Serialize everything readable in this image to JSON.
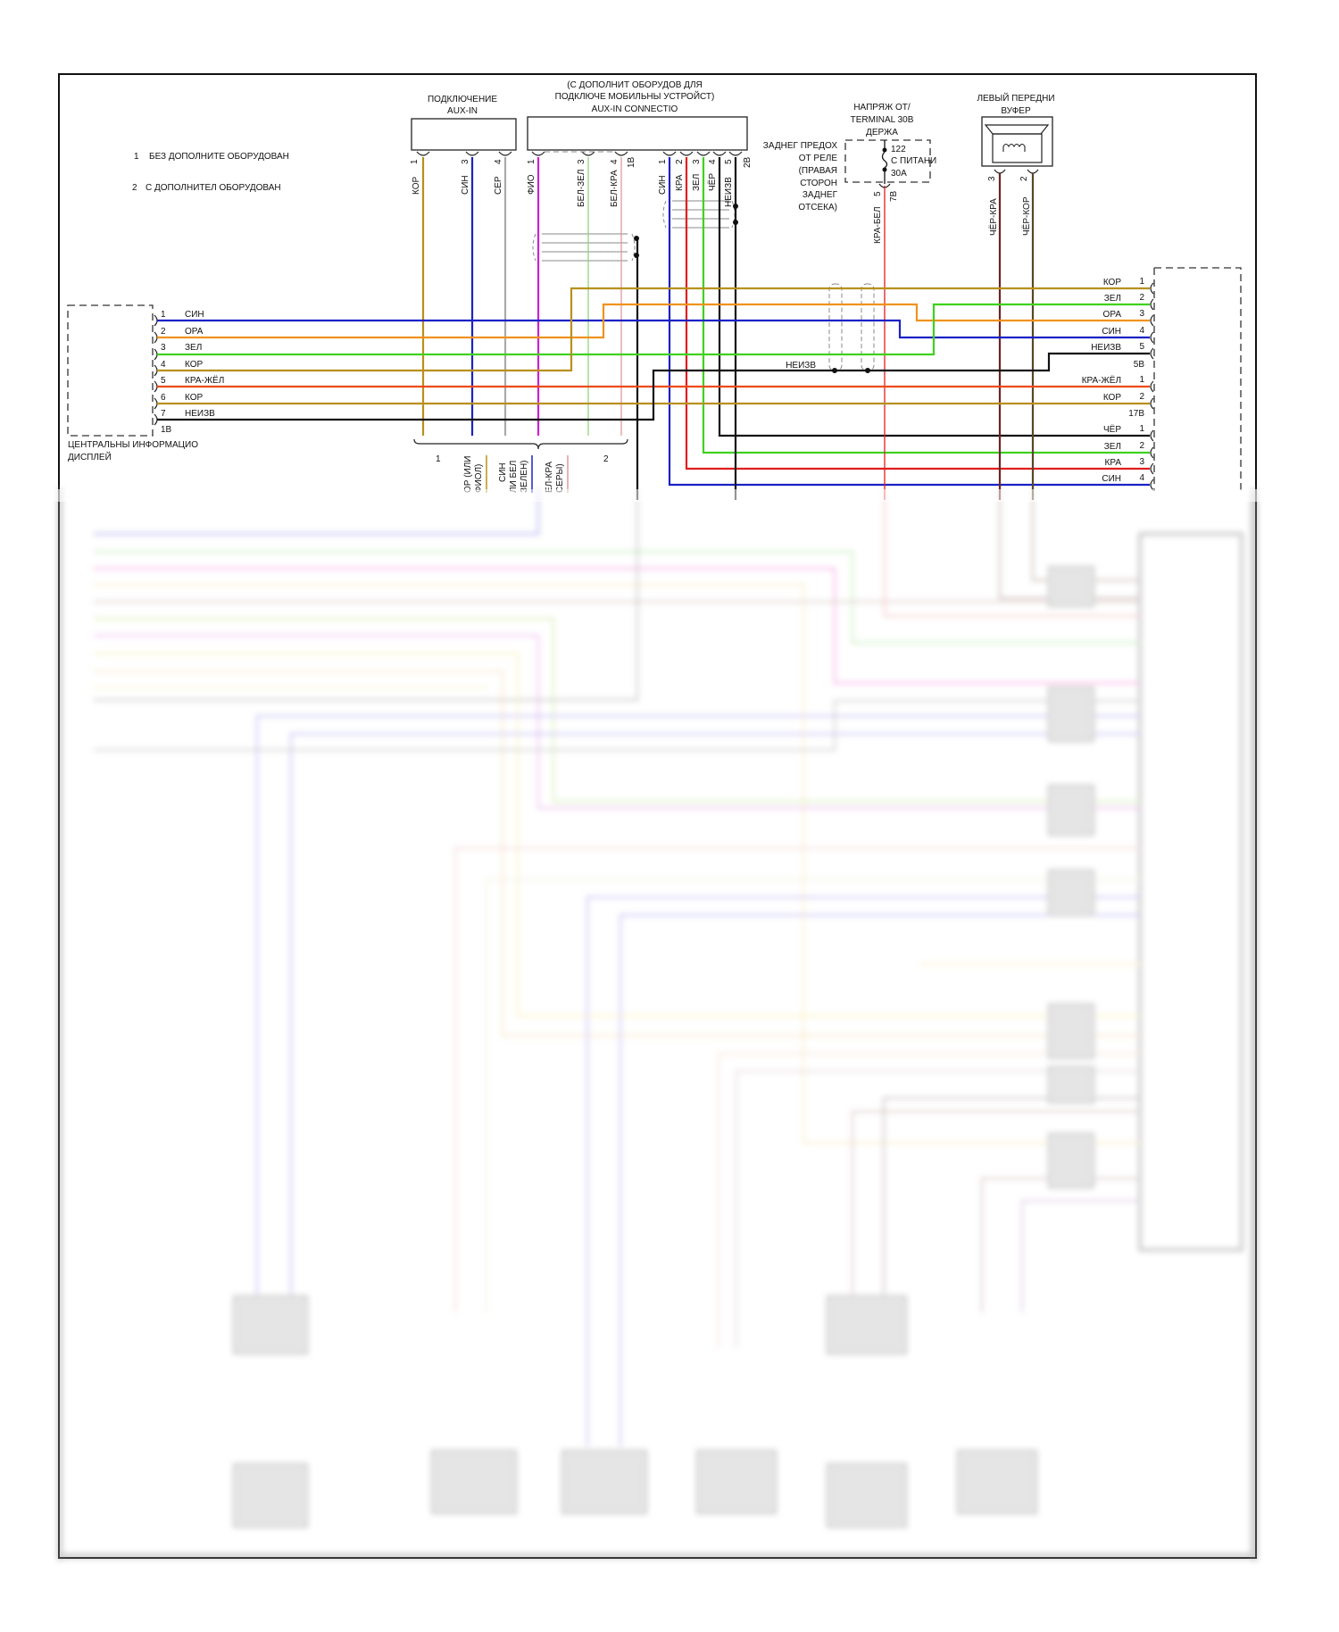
{
  "legend": [
    {
      "num": "1",
      "text": "БЕЗ ДОПОЛНИТЕ ОБОРУДОВАН"
    },
    {
      "num": "2",
      "text": "С ДОПОЛНИТЕЛ ОБОРУДОВАН"
    }
  ],
  "aux_in": {
    "title": [
      "ПОДКЛЮЧЕНИЕ",
      "AUX-IN"
    ],
    "pins": [
      {
        "num": "1",
        "wire": "КОР"
      },
      {
        "num": "3",
        "wire": "СИН"
      },
      {
        "num": "4",
        "wire": "СЕР"
      }
    ]
  },
  "aux_in_mobile": {
    "title": [
      "(С ДОПОЛНИТ ОБОРУДОВ ДЛЯ",
      "ПОДКЛЮЧЕ МОБИЛЬНЫ УСТРОЙСТ)",
      "AUX-IN CONNECTIO"
    ],
    "left_pins": [
      {
        "num": "1",
        "wire": "ФИО"
      },
      {
        "num": "3",
        "wire": "БЕЛ-ЗЕЛ"
      },
      {
        "num": "4",
        "wire": "БЕЛ-КРА"
      }
    ],
    "left_connector": "1В",
    "right_pins": [
      {
        "num": "1",
        "wire": "СИН"
      },
      {
        "num": "2",
        "wire": "КРА"
      },
      {
        "num": "3",
        "wire": "ЗЕЛ"
      },
      {
        "num": "4",
        "wire": "ЧЁР"
      },
      {
        "num": "5",
        "wire": "НЕИЗВ"
      }
    ],
    "right_connector": "2В"
  },
  "fuse": {
    "title": [
      "НАПРЯЖ ОТ/",
      "TERMINAL 30B",
      "ДЕРЖА"
    ],
    "location": [
      "ЗАДНЕГ ПРЕДОХ",
      "ОТ РЕЛЕ",
      "(ПРАВАЯ",
      "СТОРОН",
      "ЗАДНЕГ",
      "ОТСЕКА)"
    ],
    "number": "122",
    "label": "С ПИТАНИ",
    "rating": "30А",
    "pin": "5",
    "connector": "7В",
    "wire": "КРА-БЕЛ"
  },
  "subwoofer": {
    "title": [
      "ЛЕВЫЙ ПЕРЕДНИ",
      "ВУФЕР"
    ],
    "pins": [
      {
        "num": "3",
        "wire": "ЧЁР-КРА"
      },
      {
        "num": "2",
        "wire": "ЧЁР-КОР"
      }
    ]
  },
  "display": {
    "label": [
      "ЦЕНТРАЛЬНЫ ИНФОРМАЦИО",
      "ДИСПЛЕЙ"
    ],
    "connector": "1В",
    "pins": [
      {
        "num": "1",
        "wire": "СИН"
      },
      {
        "num": "2",
        "wire": "ОРА"
      },
      {
        "num": "3",
        "wire": "ЗЕЛ"
      },
      {
        "num": "4",
        "wire": "КОР"
      },
      {
        "num": "5",
        "wire": "КРА-ЖЁЛ"
      },
      {
        "num": "6",
        "wire": "КОР"
      },
      {
        "num": "7",
        "wire": "НЕИЗВ"
      }
    ]
  },
  "amplifier": {
    "group_a": {
      "connector": "5В",
      "pins": [
        {
          "num": "1",
          "wire": "КОР"
        },
        {
          "num": "2",
          "wire": "ЗЕЛ"
        },
        {
          "num": "3",
          "wire": "ОРА"
        },
        {
          "num": "4",
          "wire": "СИН"
        },
        {
          "num": "5",
          "wire": "НЕИЗВ"
        }
      ]
    },
    "group_b": {
      "connector": "17В",
      "pins": [
        {
          "num": "1",
          "wire": "КРА-ЖЁЛ"
        },
        {
          "num": "2",
          "wire": "КОР"
        }
      ]
    },
    "group_c": {
      "pins": [
        {
          "num": "1",
          "wire": "ЧЁР"
        },
        {
          "num": "2",
          "wire": "ЗЕЛ"
        },
        {
          "num": "3",
          "wire": "КРА"
        },
        {
          "num": "4",
          "wire": "СИН"
        }
      ]
    }
  },
  "splice_label": "НЕИЗВ",
  "brace": {
    "left": "1",
    "right": "2",
    "notes": [
      [
        "ОР (ИЛИ",
        "ФИОЛ)"
      ],
      [
        "СИН",
        "ЛИ БЕЛ",
        "ЗЕЛЕН)"
      ],
      [
        "ЕЛ-КРА",
        "СЕРЫ)"
      ]
    ]
  },
  "colors": {
    "КОР": "#b8901c",
    "ОРА": "#f0921e",
    "ЗЕЛ": "#3fd11f",
    "СИН": "#1a22c4",
    "КРА": "#e01e1e",
    "КРА-ЖЁЛ": "#ee4a1a",
    "СЕР": "#aaaaaa",
    "ФИО": "#d21fd2",
    "БЕЛ-ЗЕЛ": "#8fd67c",
    "БЕЛ-КРА": "#e09a9a",
    "ЧЁР": "#111111",
    "ЧЁР-КРА": "#6e2424",
    "ЧЁР-КОР": "#5a4526",
    "НЕИЗВ": "#111111"
  }
}
